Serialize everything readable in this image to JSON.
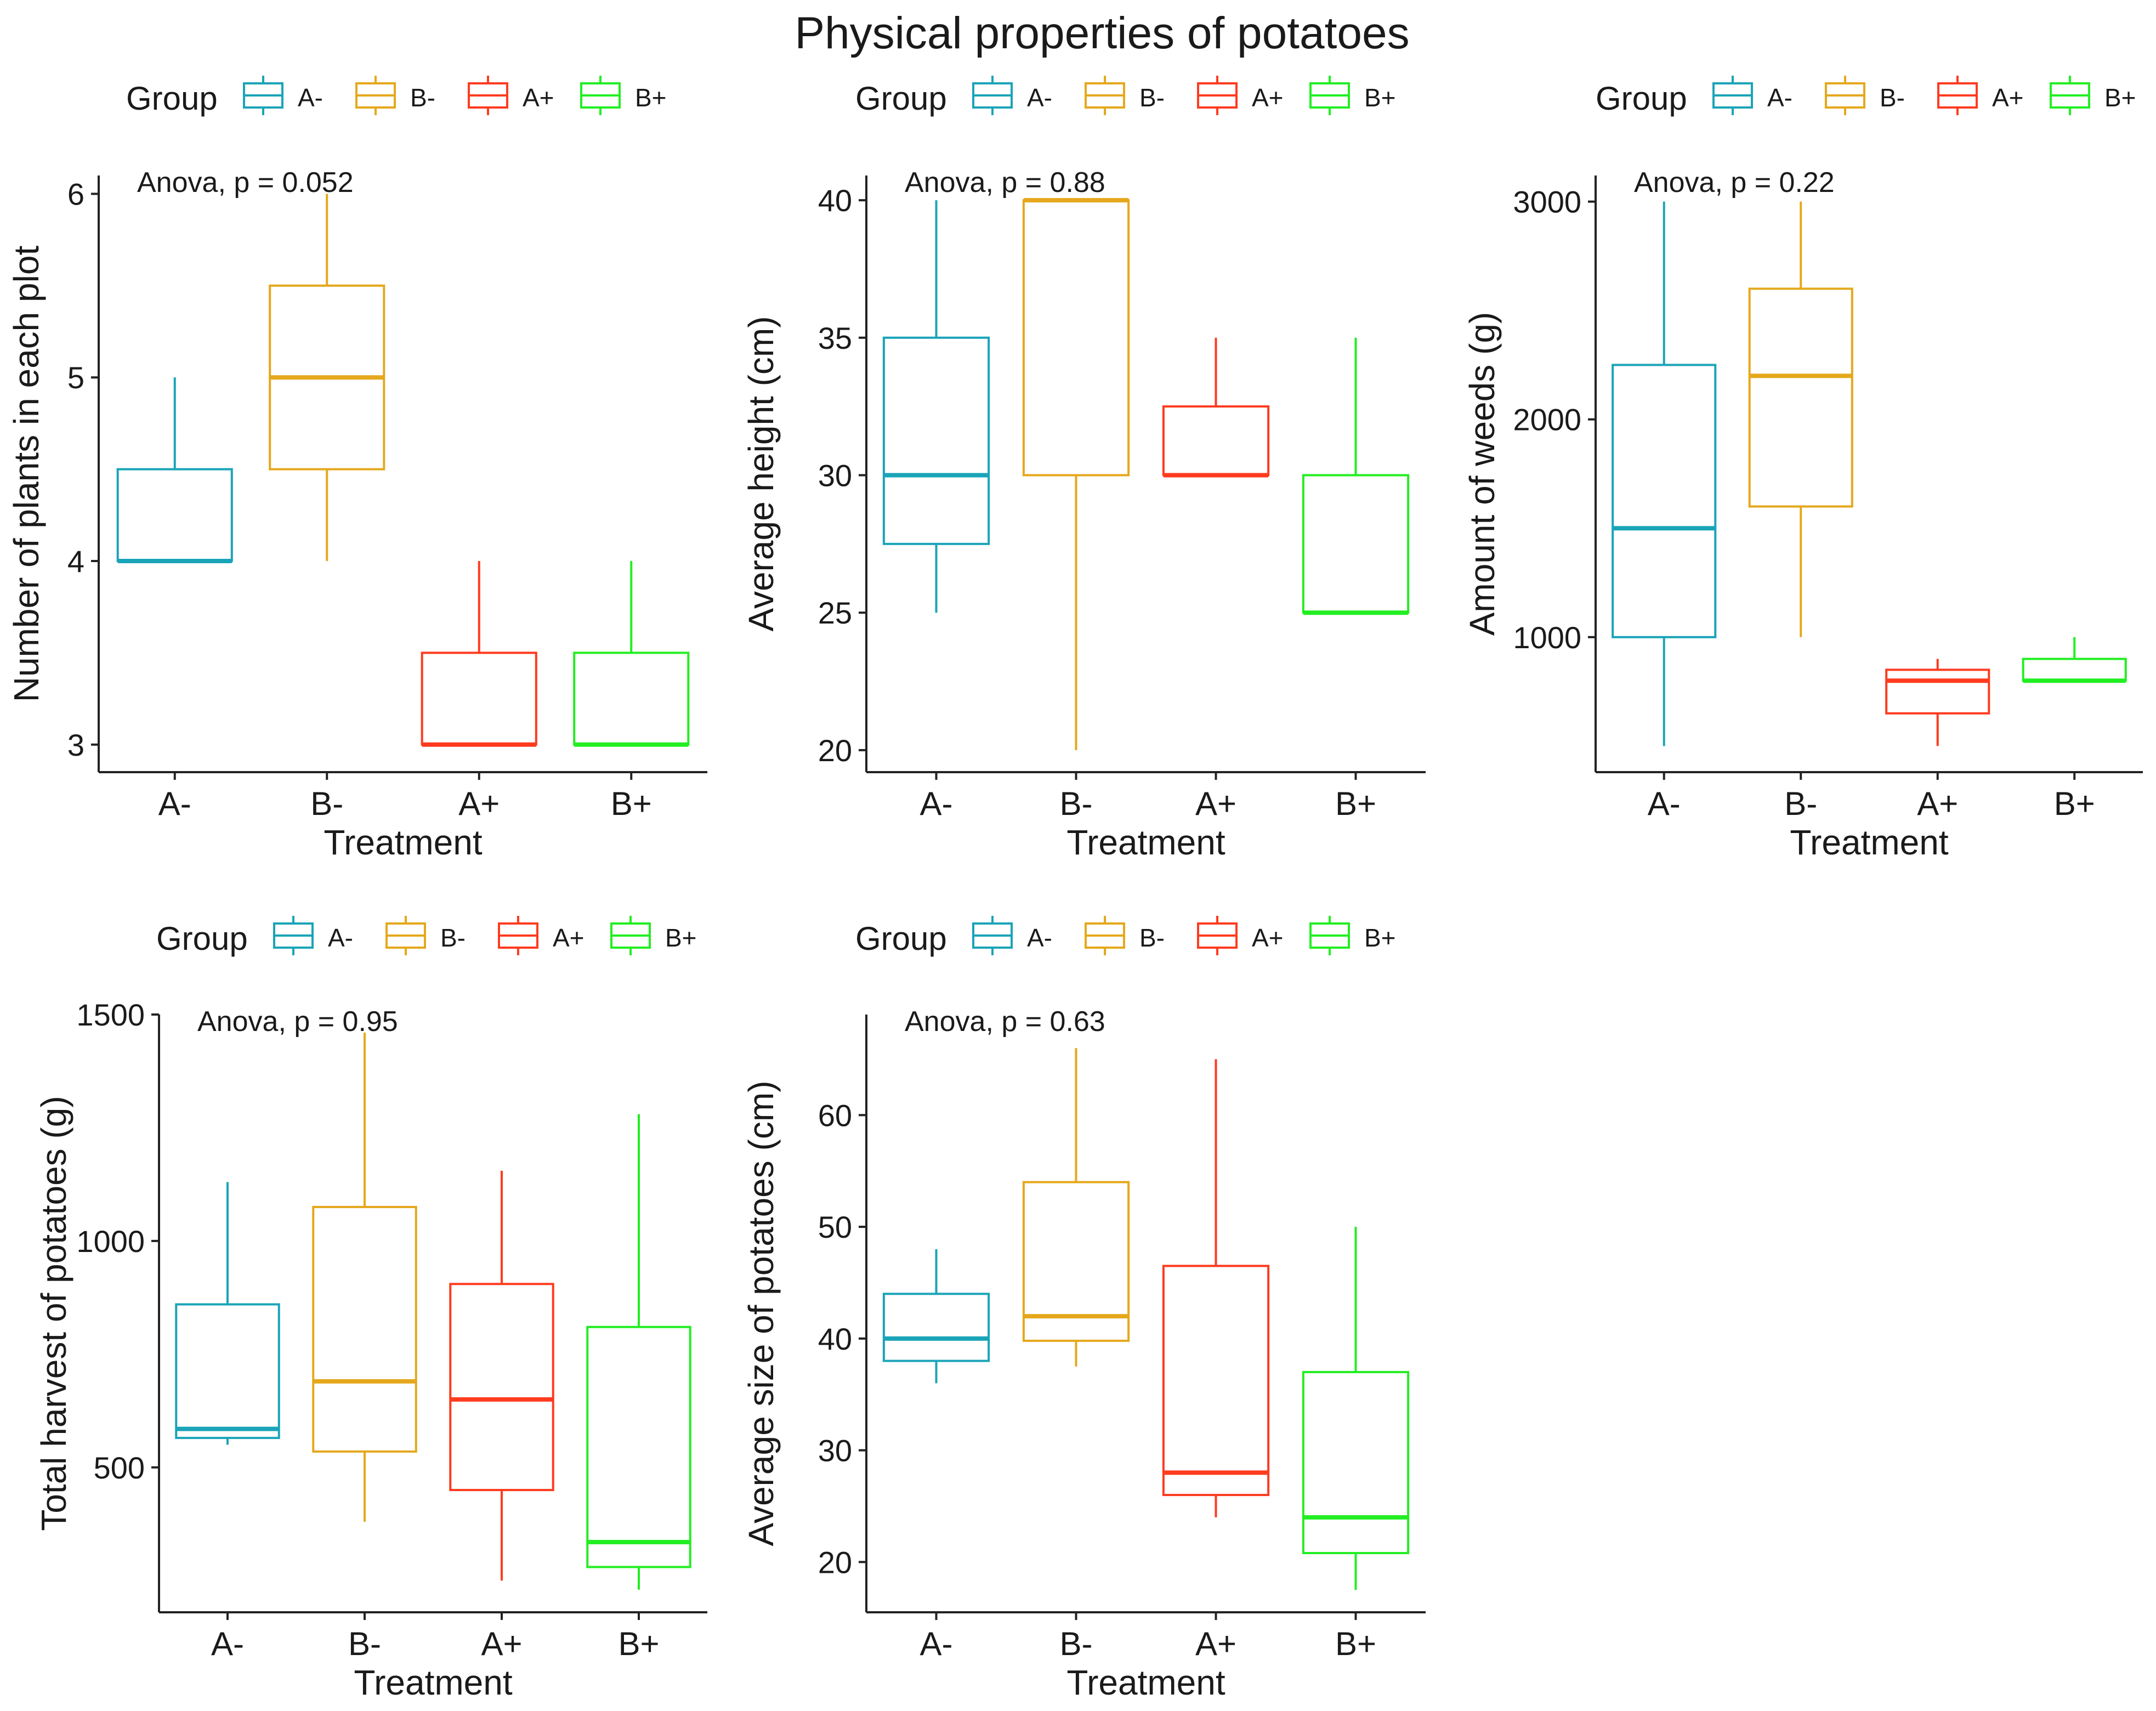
{
  "title": "Physical properties of potatoes",
  "legend_title": "Group",
  "groups": [
    "A-",
    "B-",
    "A+",
    "B+"
  ],
  "colors": {
    "A-": "#1aa4b8",
    "B-": "#e5a81c",
    "A+": "#ff3b1f",
    "B+": "#22ee22"
  },
  "chart_data": [
    {
      "type": "box",
      "ylabel": "Number of plants in each plot",
      "xlabel": "Treatment",
      "categories": [
        "A-",
        "B-",
        "A+",
        "B+"
      ],
      "annotation": "Anova, p = 0.052",
      "ylim": [
        2.85,
        6.1
      ],
      "yticks": [
        3,
        4,
        5,
        6
      ],
      "ytick_labels": [
        "3",
        "4",
        "5",
        "6"
      ],
      "boxes": [
        {
          "group": "A-",
          "min": 4,
          "q1": 4,
          "median": 4,
          "q3": 4.5,
          "max": 5
        },
        {
          "group": "B-",
          "min": 4,
          "q1": 4.5,
          "median": 5,
          "q3": 5.5,
          "max": 6
        },
        {
          "group": "A+",
          "min": 3,
          "q1": 3,
          "median": 3,
          "q3": 3.5,
          "max": 4
        },
        {
          "group": "B+",
          "min": 3,
          "q1": 3,
          "median": 3,
          "q3": 3.5,
          "max": 4
        }
      ]
    },
    {
      "type": "box",
      "ylabel": "Average height (cm)",
      "xlabel": "Treatment",
      "categories": [
        "A-",
        "B-",
        "A+",
        "B+"
      ],
      "annotation": "Anova, p = 0.88",
      "ylim": [
        19.2,
        40.9
      ],
      "yticks": [
        20,
        25,
        30,
        35,
        40
      ],
      "ytick_labels": [
        "20",
        "25",
        "30",
        "35",
        "40"
      ],
      "boxes": [
        {
          "group": "A-",
          "min": 25,
          "q1": 27.5,
          "median": 30,
          "q3": 35,
          "max": 40
        },
        {
          "group": "B-",
          "min": 20,
          "q1": 30,
          "median": 40,
          "q3": 40,
          "max": 40
        },
        {
          "group": "A+",
          "min": 30,
          "q1": 30,
          "median": 30,
          "q3": 32.5,
          "max": 35
        },
        {
          "group": "B+",
          "min": 25,
          "q1": 25,
          "median": 25,
          "q3": 30,
          "max": 35
        }
      ]
    },
    {
      "type": "box",
      "ylabel": "Amount of weeds (g)",
      "xlabel": "Treatment",
      "categories": [
        "A-",
        "B-",
        "A+",
        "B+"
      ],
      "annotation": "Anova, p = 0.22",
      "ylim": [
        380,
        3120
      ],
      "yticks": [
        1000,
        2000,
        3000
      ],
      "ytick_labels": [
        "1000",
        "2000",
        "3000"
      ],
      "boxes": [
        {
          "group": "A-",
          "min": 500,
          "q1": 1000,
          "median": 1500,
          "q3": 2250,
          "max": 3000
        },
        {
          "group": "B-",
          "min": 1000,
          "q1": 1600,
          "median": 2200,
          "q3": 2600,
          "max": 3000
        },
        {
          "group": "A+",
          "min": 500,
          "q1": 650,
          "median": 800,
          "q3": 850,
          "max": 900
        },
        {
          "group": "B+",
          "min": 800,
          "q1": 800,
          "median": 800,
          "q3": 900,
          "max": 1000
        }
      ]
    },
    {
      "type": "box",
      "ylabel": "Total harvest of potatoes (g)",
      "xlabel": "Treatment",
      "categories": [
        "A-",
        "B-",
        "A+",
        "B+"
      ],
      "annotation": "Anova, p = 0.95",
      "ylim": [
        180,
        1500
      ],
      "yticks": [
        500,
        1000,
        1500
      ],
      "ytick_labels": [
        "500",
        "1000",
        "1500"
      ],
      "boxes": [
        {
          "group": "A-",
          "min": 550,
          "q1": 565,
          "median": 585,
          "q3": 860,
          "max": 1130
        },
        {
          "group": "B-",
          "min": 380,
          "q1": 535,
          "median": 690,
          "q3": 1075,
          "max": 1460
        },
        {
          "group": "A+",
          "min": 250,
          "q1": 450,
          "median": 650,
          "q3": 905,
          "max": 1155
        },
        {
          "group": "B+",
          "min": 230,
          "q1": 280,
          "median": 335,
          "q3": 810,
          "max": 1280
        }
      ]
    },
    {
      "type": "box",
      "ylabel": "Average size of potatoes (cm)",
      "xlabel": "Treatment",
      "categories": [
        "A-",
        "B-",
        "A+",
        "B+"
      ],
      "annotation": "Anova, p = 0.63",
      "ylim": [
        15.5,
        69
      ],
      "yticks": [
        20,
        30,
        40,
        50,
        60
      ],
      "ytick_labels": [
        "20",
        "30",
        "40",
        "50",
        "60"
      ],
      "boxes": [
        {
          "group": "A-",
          "min": 36,
          "q1": 38,
          "median": 40,
          "q3": 44,
          "max": 48
        },
        {
          "group": "B-",
          "min": 37.5,
          "q1": 39.8,
          "median": 42,
          "q3": 54,
          "max": 66
        },
        {
          "group": "A+",
          "min": 24,
          "q1": 26,
          "median": 28,
          "q3": 46.5,
          "max": 65
        },
        {
          "group": "B+",
          "min": 17.5,
          "q1": 20.8,
          "median": 24,
          "q3": 37,
          "max": 50
        }
      ]
    }
  ]
}
